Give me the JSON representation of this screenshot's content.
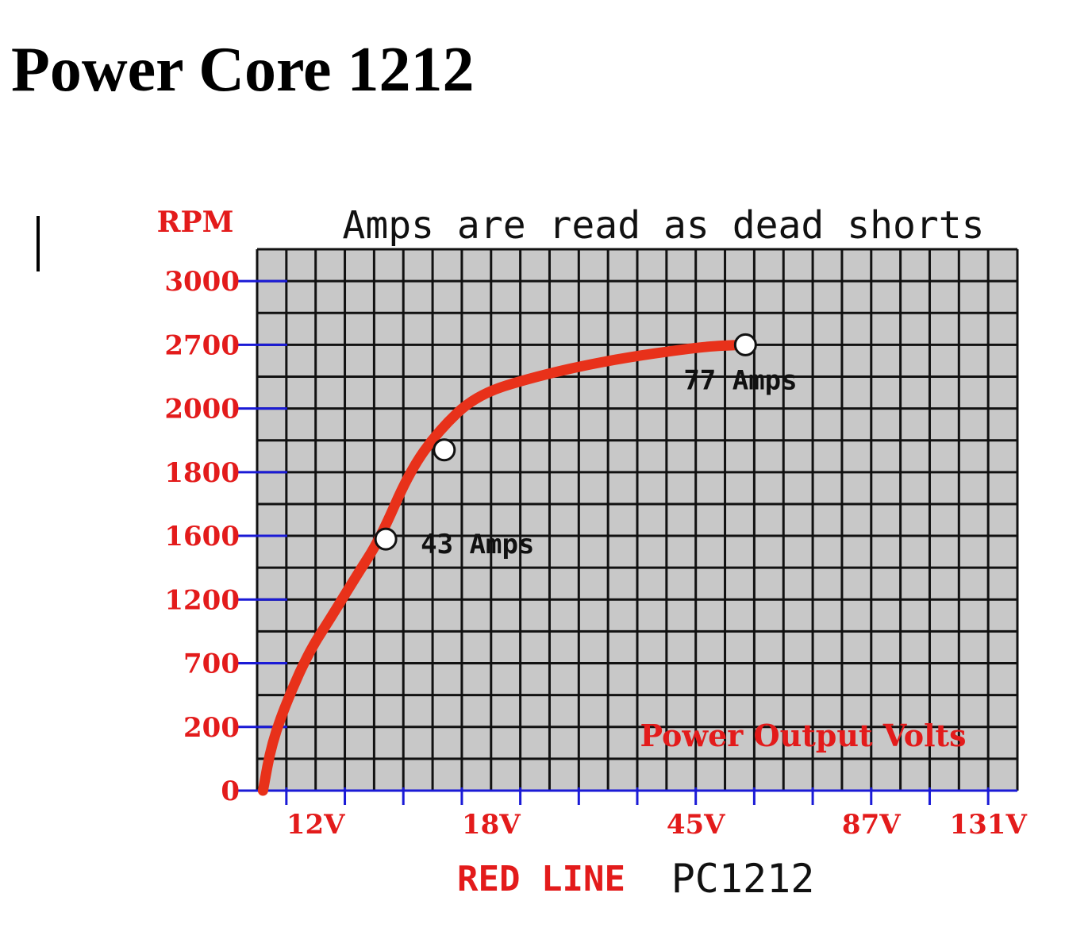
{
  "page": {
    "title": "Power Core 1212"
  },
  "chart_data": {
    "type": "line",
    "title": "Amps are read as dead shorts",
    "ylabel": "RPM",
    "y_tick_labels": [
      "3000",
      "2700",
      "2000",
      "1800",
      "1600",
      "1200",
      "700",
      "200",
      "0"
    ],
    "x_tick_labels": [
      "12V",
      "18V",
      "45V",
      "87V",
      "131V"
    ],
    "series": [
      {
        "name": "RED LINE",
        "color": "#e8311a",
        "points": [
          {
            "x": 0.2,
            "y": 0
          },
          {
            "x": 0.5,
            "y": 150
          },
          {
            "x": 1.1,
            "y": 450
          },
          {
            "x": 1.8,
            "y": 800
          },
          {
            "x": 2.5,
            "y": 1050
          },
          {
            "x": 3.4,
            "y": 1350
          },
          {
            "x": 4.2,
            "y": 1580
          },
          {
            "x": 5.2,
            "y": 1800
          },
          {
            "x": 6.2,
            "y": 1930
          },
          {
            "x": 7.5,
            "y": 2150
          },
          {
            "x": 9.5,
            "y": 2350
          },
          {
            "x": 12.0,
            "y": 2530
          },
          {
            "x": 15.2,
            "y": 2680
          },
          {
            "x": 16.6,
            "y": 2700
          }
        ]
      }
    ],
    "markers": [
      {
        "x": 4.4,
        "y": 1580,
        "label": "43 Amps"
      },
      {
        "x": 6.4,
        "y": 1870,
        "label": ""
      },
      {
        "x": 16.7,
        "y": 2700,
        "label": "77 Amps"
      }
    ],
    "legend_text": "Power Output Volts",
    "footer": {
      "left": "RED LINE",
      "right": "PC1212"
    },
    "colors": {
      "grid_bg": "#c8c8c8",
      "grid_line": "#111111",
      "tick_marks": "#1a1ad6",
      "labels": "#e31b1b"
    }
  }
}
